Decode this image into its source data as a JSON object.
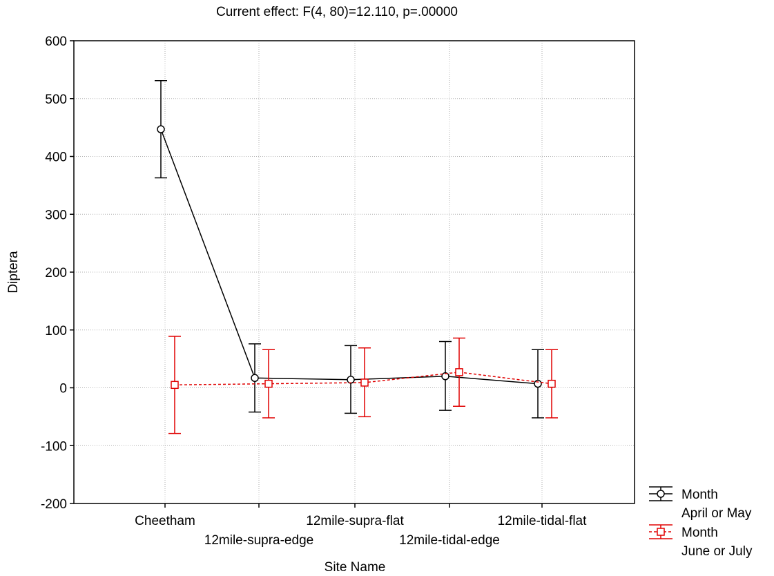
{
  "chart_data": {
    "type": "line",
    "title": "Current effect: F(4, 80)=12.110, p=.00000",
    "xlabel": "Site Name",
    "ylabel": "Diptera",
    "categories": [
      "Cheetham",
      "12mile-supra-edge",
      "12mile-supra-flat",
      "12mile-tidal-edge",
      "12mile-tidal-flat"
    ],
    "ylim": [
      -200,
      600
    ],
    "yticks": [
      -200,
      -100,
      0,
      100,
      200,
      300,
      400,
      500,
      600
    ],
    "grid": true,
    "legend_position": "right",
    "series": [
      {
        "name": "April or May",
        "legend_header": "Month",
        "color": "#000000",
        "marker": "circle",
        "line_style": "solid",
        "values": [
          447,
          17,
          14,
          20,
          7
        ],
        "err_low": [
          363,
          -42,
          -44,
          -39,
          -52
        ],
        "err_high": [
          531,
          76,
          73,
          80,
          66
        ]
      },
      {
        "name": "June or July",
        "legend_header": "Month",
        "color": "#e00000",
        "marker": "square",
        "line_style": "dashed",
        "values": [
          5,
          7,
          9,
          27,
          7
        ],
        "err_low": [
          -79,
          -52,
          -50,
          -32,
          -52
        ],
        "err_high": [
          89,
          66,
          69,
          86,
          66
        ]
      }
    ]
  }
}
